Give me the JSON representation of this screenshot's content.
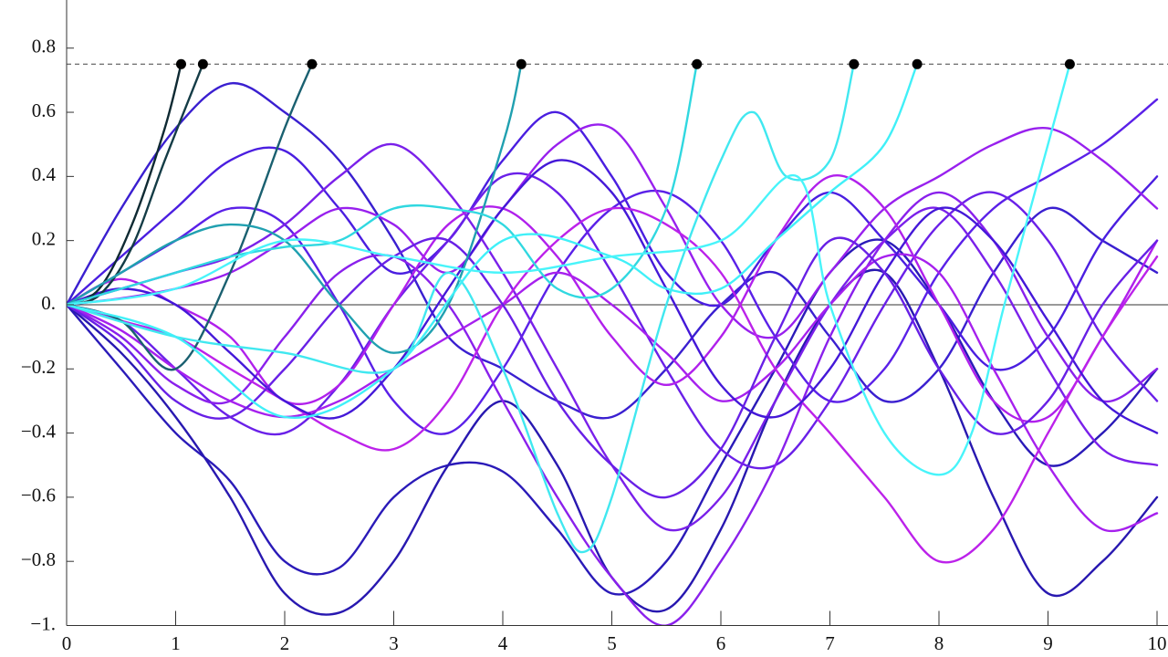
{
  "chart_data": {
    "type": "line",
    "xlim": [
      0,
      10
    ],
    "ylim": [
      -1,
      0.95
    ],
    "xticks": [
      0,
      1,
      2,
      3,
      4,
      5,
      6,
      7,
      8,
      9,
      10
    ],
    "yticks": [
      0.8,
      0.6,
      0.4,
      0.2,
      {
        "value": 0,
        "label": "0."
      },
      {
        "value": -0.2,
        "label": "−0.2"
      },
      {
        "value": -0.4,
        "label": "−0.4"
      },
      {
        "value": -0.6,
        "label": "−0.6"
      },
      {
        "value": -0.8,
        "label": "−0.8"
      },
      {
        "value": -1,
        "label": "−1."
      }
    ],
    "threshold": 0.75,
    "threshold_style": "dashed",
    "threshold_color": "#444444",
    "marker_color": "#000000",
    "x": [
      0,
      0.5,
      1,
      1.5,
      2,
      2.5,
      3,
      3.5,
      4,
      4.5,
      5,
      5.5,
      6,
      6.5,
      7,
      7.5,
      8,
      8.5,
      9,
      9.5,
      10
    ],
    "series": [
      {
        "color": "#3a1fd0",
        "values": [
          0,
          0.3,
          0.55,
          0.69,
          0.6,
          0.45,
          0.2,
          -0.1,
          -0.2,
          -0.3,
          -0.35,
          -0.2,
          0,
          0.1,
          -0.1,
          -0.3,
          -0.2,
          0.1,
          0.3,
          0.2,
          0.1
        ]
      },
      {
        "color": "#2a1ab8",
        "values": [
          0,
          -0.2,
          -0.4,
          -0.55,
          -0.8,
          -0.82,
          -0.6,
          -0.5,
          -0.52,
          -0.7,
          -0.9,
          -0.8,
          -0.5,
          -0.2,
          0.1,
          0.2,
          0,
          -0.3,
          -0.5,
          -0.4,
          -0.2
        ]
      },
      {
        "color": "#2818b0",
        "values": [
          0,
          -0.15,
          -0.35,
          -0.6,
          -0.9,
          -0.96,
          -0.8,
          -0.5,
          -0.3,
          -0.5,
          -0.85,
          -0.95,
          -0.7,
          -0.3,
          0,
          0.1,
          -0.2,
          -0.6,
          -0.9,
          -0.8,
          -0.6
        ]
      },
      {
        "color": "#4a1ee0",
        "values": [
          0,
          0.15,
          0.3,
          0.45,
          0.48,
          0.3,
          0.1,
          0.2,
          0.45,
          0.6,
          0.4,
          0.1,
          0,
          0.2,
          0.35,
          0.2,
          0,
          -0.2,
          -0.1,
          0.2,
          0.4
        ]
      },
      {
        "color": "#5a20e8",
        "values": [
          0,
          0.1,
          0.2,
          0.3,
          0.25,
          0,
          -0.3,
          -0.4,
          -0.2,
          0.1,
          0.3,
          0.35,
          0.2,
          -0.1,
          -0.3,
          -0.2,
          0.1,
          0.3,
          0.4,
          0.5,
          0.64
        ]
      },
      {
        "color": "#6a20e8",
        "values": [
          0,
          -0.05,
          -0.2,
          -0.35,
          -0.4,
          -0.25,
          0,
          0.2,
          0.4,
          0.35,
          0.1,
          -0.2,
          -0.45,
          -0.5,
          -0.3,
          0,
          0.25,
          0.35,
          0.2,
          -0.1,
          -0.3
        ]
      },
      {
        "color": "#7a20ea",
        "values": [
          0,
          0.05,
          0.1,
          0.15,
          0.25,
          0.4,
          0.5,
          0.35,
          0.1,
          -0.2,
          -0.5,
          -0.7,
          -0.6,
          -0.3,
          0,
          0.2,
          0.3,
          0.1,
          -0.2,
          -0.45,
          -0.5
        ]
      },
      {
        "color": "#8a20ec",
        "values": [
          0,
          -0.1,
          -0.25,
          -0.3,
          -0.1,
          0.1,
          0.15,
          0,
          -0.3,
          -0.6,
          -0.85,
          -1,
          -0.8,
          -0.5,
          -0.1,
          0.2,
          0.35,
          0.2,
          -0.1,
          -0.3,
          -0.2
        ]
      },
      {
        "color": "#9820ee",
        "values": [
          0,
          0.02,
          0.05,
          0.1,
          0.2,
          0.3,
          0.25,
          0.1,
          0.3,
          0.5,
          0.55,
          0.3,
          0,
          -0.1,
          0.1,
          0.3,
          0.4,
          0.5,
          0.55,
          0.45,
          0.3
        ]
      },
      {
        "color": "#a620ee",
        "values": [
          0,
          -0.08,
          -0.2,
          -0.3,
          -0.35,
          -0.3,
          -0.2,
          -0.1,
          0,
          0.1,
          0,
          -0.15,
          -0.3,
          -0.2,
          0,
          0.15,
          0.1,
          -0.2,
          -0.5,
          -0.7,
          -0.65
        ]
      },
      {
        "color": "#b020ec",
        "values": [
          0,
          0.08,
          0,
          -0.1,
          -0.3,
          -0.25,
          0,
          0.25,
          0.3,
          0.15,
          -0.1,
          -0.25,
          -0.1,
          0.2,
          0.4,
          0.3,
          0,
          -0.3,
          -0.35,
          -0.1,
          0.2
        ]
      },
      {
        "color": "#bc22ea",
        "values": [
          0,
          -0.05,
          -0.1,
          -0.2,
          -0.3,
          -0.4,
          -0.45,
          -0.3,
          0,
          0.2,
          0.3,
          0.25,
          0.1,
          -0.2,
          -0.4,
          -0.6,
          -0.8,
          -0.7,
          -0.4,
          -0.1,
          0.15
        ]
      },
      {
        "color": "#4418d8",
        "values": [
          0,
          0.05,
          0,
          -0.15,
          -0.3,
          -0.35,
          -0.2,
          0.05,
          0.3,
          0.45,
          0.35,
          0.05,
          -0.25,
          -0.35,
          -0.2,
          0.1,
          0.3,
          0.2,
          -0.05,
          -0.3,
          -0.4
        ]
      },
      {
        "color": "#6820e6",
        "values": [
          0,
          -0.12,
          -0.3,
          -0.35,
          -0.2,
          0,
          0.15,
          0.2,
          0,
          -0.3,
          -0.5,
          -0.6,
          -0.45,
          -0.1,
          0.2,
          0.1,
          -0.2,
          -0.4,
          -0.3,
          0,
          0.2
        ]
      },
      {
        "color": "#0f2a33",
        "x": [
          0,
          0.3,
          0.6,
          0.9,
          1.05
        ],
        "values": [
          0,
          0.05,
          0.25,
          0.55,
          0.75
        ]
      },
      {
        "color": "#143c46",
        "x": [
          0,
          0.3,
          0.6,
          0.9,
          1.25
        ],
        "values": [
          0,
          0.03,
          0.18,
          0.45,
          0.75
        ]
      },
      {
        "color": "#1a6070",
        "x": [
          0,
          0.5,
          1,
          1.5,
          2,
          2.25
        ],
        "values": [
          0,
          -0.05,
          -0.2,
          0.1,
          0.55,
          0.75
        ]
      },
      {
        "color": "#20a0b0",
        "x": [
          0,
          0.5,
          1,
          1.5,
          2,
          2.5,
          3,
          3.5,
          4,
          4.17
        ],
        "values": [
          0,
          0.1,
          0.2,
          0.25,
          0.2,
          0,
          -0.15,
          0,
          0.5,
          0.75
        ]
      },
      {
        "color": "#30d8e0",
        "x": [
          0,
          0.5,
          1,
          1.5,
          2,
          2.5,
          3,
          3.5,
          4,
          4.5,
          5,
          5.5,
          5.78
        ],
        "values": [
          0,
          0.05,
          0.1,
          0.15,
          0.18,
          0.2,
          0.3,
          0.3,
          0.25,
          0.05,
          0.05,
          0.3,
          0.75
        ]
      },
      {
        "color": "#40e8f0",
        "x": [
          0,
          1,
          2,
          3,
          3.5,
          4,
          4.5,
          4.75,
          5,
          5.5,
          6,
          6.3,
          6.6,
          7,
          7.22
        ],
        "values": [
          0,
          -0.1,
          -0.15,
          -0.2,
          0.1,
          -0.2,
          -0.65,
          -0.77,
          -0.6,
          0,
          0.45,
          0.6,
          0.4,
          0.45,
          0.75
        ]
      },
      {
        "color": "#40f0f8",
        "x": [
          0,
          1,
          2,
          3,
          4,
          5,
          5.5,
          6,
          6.5,
          7,
          7.5,
          7.8
        ],
        "values": [
          0,
          -0.1,
          -0.35,
          -0.2,
          0.2,
          0.15,
          0.05,
          0.05,
          0.2,
          0.35,
          0.5,
          0.75
        ]
      },
      {
        "color": "#48f4fa",
        "x": [
          0,
          1,
          2,
          3,
          4,
          5,
          6,
          6.7,
          7,
          7.5,
          8,
          8.3,
          8.6,
          9,
          9.2
        ],
        "values": [
          0,
          0.05,
          0.2,
          0.15,
          0.1,
          0.15,
          0.2,
          0.4,
          0,
          -0.4,
          -0.53,
          -0.4,
          0,
          0.5,
          0.75
        ]
      }
    ]
  }
}
